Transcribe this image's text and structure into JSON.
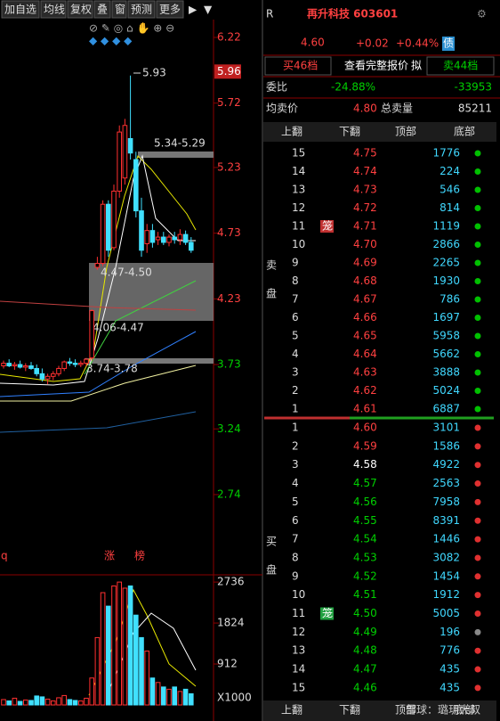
{
  "toolbar": [
    "加自选",
    "均线",
    "复权",
    "叠",
    "窗",
    "预测",
    "更多"
  ],
  "price_axis": [
    6.22,
    5.72,
    5.23,
    4.73,
    4.23,
    3.73,
    3.24,
    2.74
  ],
  "price_axis_colors": [
    "#ff4040",
    "#ff4040",
    "#ff4040",
    "#ff4040",
    "#ff4040",
    "#00d000",
    "#00d000",
    "#00d000"
  ],
  "cursor_price": 5.96,
  "candles": [
    [
      3.72,
      3.76,
      3.7,
      3.74
    ],
    [
      3.74,
      3.77,
      3.71,
      3.72
    ],
    [
      3.72,
      3.75,
      3.69,
      3.73
    ],
    [
      3.73,
      3.76,
      3.7,
      3.71
    ],
    [
      3.71,
      3.74,
      3.68,
      3.72
    ],
    [
      3.72,
      3.75,
      3.69,
      3.7
    ],
    [
      3.7,
      3.73,
      3.64,
      3.66
    ],
    [
      3.66,
      3.7,
      3.6,
      3.62
    ],
    [
      3.62,
      3.66,
      3.58,
      3.64
    ],
    [
      3.64,
      3.68,
      3.61,
      3.66
    ],
    [
      3.66,
      3.72,
      3.64,
      3.7
    ],
    [
      3.7,
      3.76,
      3.68,
      3.75
    ],
    [
      3.75,
      3.78,
      3.72,
      3.74
    ],
    [
      3.74,
      3.77,
      3.71,
      3.73
    ],
    [
      3.73,
      3.76,
      3.71,
      3.74
    ],
    [
      3.74,
      3.78,
      3.72,
      3.77
    ],
    [
      3.78,
      4.15,
      3.76,
      4.14
    ],
    [
      4.47,
      4.55,
      4.45,
      4.5
    ],
    [
      4.5,
      4.98,
      4.48,
      4.95
    ],
    [
      4.95,
      4.98,
      4.55,
      4.6
    ],
    [
      4.62,
      5.1,
      4.6,
      5.05
    ],
    [
      5.05,
      5.55,
      5.0,
      5.5
    ],
    [
      5.15,
      5.6,
      5.1,
      5.55
    ],
    [
      5.45,
      5.93,
      5.29,
      5.34
    ],
    [
      5.29,
      5.35,
      4.85,
      4.9
    ],
    [
      4.9,
      5.0,
      4.55,
      4.6
    ],
    [
      4.65,
      4.8,
      4.58,
      4.75
    ],
    [
      4.75,
      4.8,
      4.62,
      4.66
    ],
    [
      4.68,
      4.74,
      4.64,
      4.7
    ],
    [
      4.7,
      4.74,
      4.64,
      4.66
    ],
    [
      4.66,
      4.72,
      4.63,
      4.7
    ],
    [
      4.7,
      4.74,
      4.65,
      4.68
    ],
    [
      4.68,
      4.76,
      4.64,
      4.72
    ],
    [
      4.72,
      4.75,
      4.64,
      4.66
    ],
    [
      4.66,
      4.7,
      4.58,
      4.6
    ]
  ],
  "volumes": [
    120,
    90,
    150,
    80,
    110,
    100,
    200,
    180,
    130,
    90,
    160,
    210,
    120,
    100,
    90,
    150,
    600,
    1500,
    2500,
    2200,
    2650,
    2736,
    2600,
    2650,
    2000,
    1500,
    1200,
    600,
    500,
    400,
    350,
    400,
    300,
    350,
    250
  ],
  "volume_axis": [
    2736,
    1824,
    912
  ],
  "volume_unit": "X1000",
  "annotations": {
    "high": "5.93",
    "gap1": "5.34-5.29",
    "gap2": "4.47-4.50",
    "gap3": "4.06-4.47",
    "gap4": "3.74-3.78",
    "mark_q": "q",
    "mark_zhang": "涨",
    "mark_bang": "榜"
  },
  "quote": {
    "market": "R",
    "name": "再升科技 603601",
    "price": "4.60",
    "change": "+0.02",
    "change_pct": "+0.44%",
    "bond": "债",
    "buy_levels": "买46档",
    "full_quote": "查看完整报价",
    "draft": "拟",
    "sell_levels": "卖44档",
    "ratio_label": "委比",
    "ratio": "-24.88%",
    "ratio_diff": "-33953",
    "avg_sell_label": "均卖价",
    "avg_sell": "4.80",
    "total_sell_label": "总卖量",
    "total_sell": "85211"
  },
  "nav": [
    "上翻",
    "下翻",
    "顶部",
    "底部"
  ],
  "order_book": {
    "sell_label": [
      "卖",
      "盘"
    ],
    "buy_label": [
      "买",
      "盘"
    ],
    "sell": [
      {
        "level": 15,
        "price": "4.75",
        "volume": 1776,
        "color": "#ff4040",
        "dot": "#00c000"
      },
      {
        "level": 14,
        "price": "4.74",
        "volume": 224,
        "color": "#ff4040",
        "dot": "#00c000"
      },
      {
        "level": 13,
        "price": "4.73",
        "volume": 546,
        "color": "#ff4040",
        "dot": "#00c000"
      },
      {
        "level": 12,
        "price": "4.72",
        "volume": 814,
        "color": "#ff4040",
        "dot": "#00c000"
      },
      {
        "level": 11,
        "price": "4.71",
        "volume": 1119,
        "color": "#ff4040",
        "dot": "#00c000",
        "badge": "笼"
      },
      {
        "level": 10,
        "price": "4.70",
        "volume": 2866,
        "color": "#ff4040",
        "dot": "#00c000"
      },
      {
        "level": 9,
        "price": "4.69",
        "volume": 2265,
        "color": "#ff4040",
        "dot": "#00c000"
      },
      {
        "level": 8,
        "price": "4.68",
        "volume": 1930,
        "color": "#ff4040",
        "dot": "#00c000"
      },
      {
        "level": 7,
        "price": "4.67",
        "volume": 786,
        "color": "#ff4040",
        "dot": "#00c000"
      },
      {
        "level": 6,
        "price": "4.66",
        "volume": 1697,
        "color": "#ff4040",
        "dot": "#00c000"
      },
      {
        "level": 5,
        "price": "4.65",
        "volume": 5958,
        "color": "#ff4040",
        "dot": "#00c000"
      },
      {
        "level": 4,
        "price": "4.64",
        "volume": 5662,
        "color": "#ff4040",
        "dot": "#00c000"
      },
      {
        "level": 3,
        "price": "4.63",
        "volume": 3888,
        "color": "#ff4040",
        "dot": "#00c000"
      },
      {
        "level": 2,
        "price": "4.62",
        "volume": 5024,
        "color": "#ff4040",
        "dot": "#00c000"
      },
      {
        "level": 1,
        "price": "4.61",
        "volume": 6887,
        "color": "#ff4040",
        "dot": "#00c000"
      }
    ],
    "buy": [
      {
        "level": 1,
        "price": "4.60",
        "volume": 3101,
        "color": "#ff4040",
        "dot": "#e03030"
      },
      {
        "level": 2,
        "price": "4.59",
        "volume": 1586,
        "color": "#ff4040",
        "dot": "#e03030"
      },
      {
        "level": 3,
        "price": "4.58",
        "volume": 4922,
        "color": "#ffffff",
        "dot": "#e03030"
      },
      {
        "level": 4,
        "price": "4.57",
        "volume": 2563,
        "color": "#00d000",
        "dot": "#e03030"
      },
      {
        "level": 5,
        "price": "4.56",
        "volume": 7958,
        "color": "#00d000",
        "dot": "#e03030"
      },
      {
        "level": 6,
        "price": "4.55",
        "volume": 8391,
        "color": "#00d000",
        "dot": "#e03030"
      },
      {
        "level": 7,
        "price": "4.54",
        "volume": 1446,
        "color": "#00d000",
        "dot": "#e03030"
      },
      {
        "level": 8,
        "price": "4.53",
        "volume": 3082,
        "color": "#00d000",
        "dot": "#e03030"
      },
      {
        "level": 9,
        "price": "4.52",
        "volume": 1454,
        "color": "#00d000",
        "dot": "#e03030"
      },
      {
        "level": 10,
        "price": "4.51",
        "volume": 1912,
        "color": "#00d000",
        "dot": "#e03030"
      },
      {
        "level": 11,
        "price": "4.50",
        "volume": 5005,
        "color": "#00d000",
        "dot": "#e03030",
        "badge": "笼"
      },
      {
        "level": 12,
        "price": "4.49",
        "volume": 196,
        "color": "#00d000",
        "dot": "#888888"
      },
      {
        "level": 13,
        "price": "4.48",
        "volume": 776,
        "color": "#00d000",
        "dot": "#e03030"
      },
      {
        "level": 14,
        "price": "4.47",
        "volume": 435,
        "color": "#00d000",
        "dot": "#e03030"
      },
      {
        "level": 15,
        "price": "4.46",
        "volume": 435,
        "color": "#00d000",
        "dot": "#e03030"
      }
    ]
  },
  "watermark": "雪球：璐玥大叔"
}
